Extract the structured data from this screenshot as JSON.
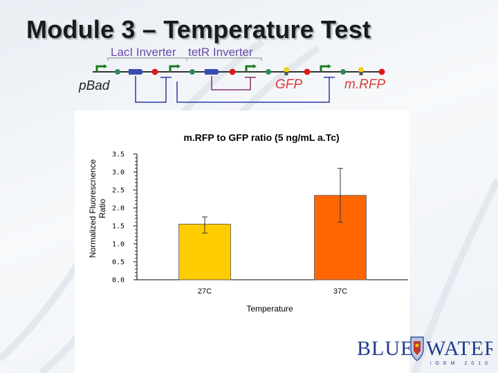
{
  "slide": {
    "title": "Module 3 – Temperature Test"
  },
  "construct": {
    "lacI_label": "LacI Inverter",
    "tetR_label": "tetR Inverter",
    "pbad_label": "pBad",
    "gfp_label": "GFP",
    "mrfp_label": "m.RFP"
  },
  "logo": {
    "left_word": "BLUE",
    "right_word": "WATER",
    "subtitle": "iGEM 2010"
  },
  "colors": {
    "bar_27C": "#ffcc00",
    "bar_37C": "#ff6600",
    "logo": "#233a8a",
    "part_label": "#d93a3a",
    "inverter_label": "#6a4aa8"
  },
  "chart_data": {
    "type": "bar",
    "title": "m.RFP to GFP ratio (5 ng/mL a.Tc)",
    "xlabel": "Temperature",
    "ylabel": "Normalized Fluorescnence Ratio",
    "categories": [
      "27C",
      "37C"
    ],
    "values": [
      1.55,
      2.35
    ],
    "error": [
      [
        1.3,
        1.75
      ],
      [
        1.6,
        3.1
      ]
    ],
    "ylim": [
      0.0,
      3.5
    ],
    "yticks": [
      "0.0",
      "0.5",
      "1.0",
      "1.5",
      "2.0",
      "2.5",
      "3.0",
      "3.5"
    ],
    "grid": false,
    "legend": "none"
  }
}
